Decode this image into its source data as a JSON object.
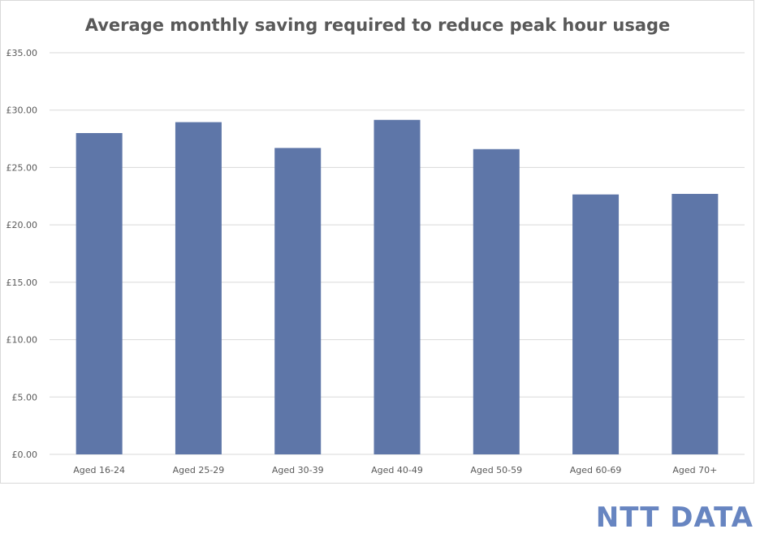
{
  "colors": {
    "bar": "#5e76a8",
    "grid": "#d9d9d9",
    "text": "#595959",
    "brand": "#6785c1"
  },
  "brand": {
    "logo_text": "NTT DATA"
  },
  "chart_data": {
    "type": "bar",
    "title": "Average monthly saving required to reduce peak hour usage",
    "xlabel": "",
    "ylabel": "",
    "categories": [
      "Aged 16-24",
      "Aged 25-29",
      "Aged 30-39",
      "Aged 40-49",
      "Aged 50-59",
      "Aged 60-69",
      "Aged 70+"
    ],
    "values": [
      28.0,
      28.95,
      26.7,
      29.15,
      26.6,
      22.65,
      22.7
    ],
    "ylim": [
      0,
      35
    ],
    "yticks": [
      "£0.00",
      "£5.00",
      "£10.00",
      "£15.00",
      "£20.00",
      "£25.00",
      "£30.00",
      "£35.00"
    ],
    "ytick_values": [
      0,
      5,
      10,
      15,
      20,
      25,
      30,
      35
    ],
    "grid": true,
    "legend": "none"
  }
}
